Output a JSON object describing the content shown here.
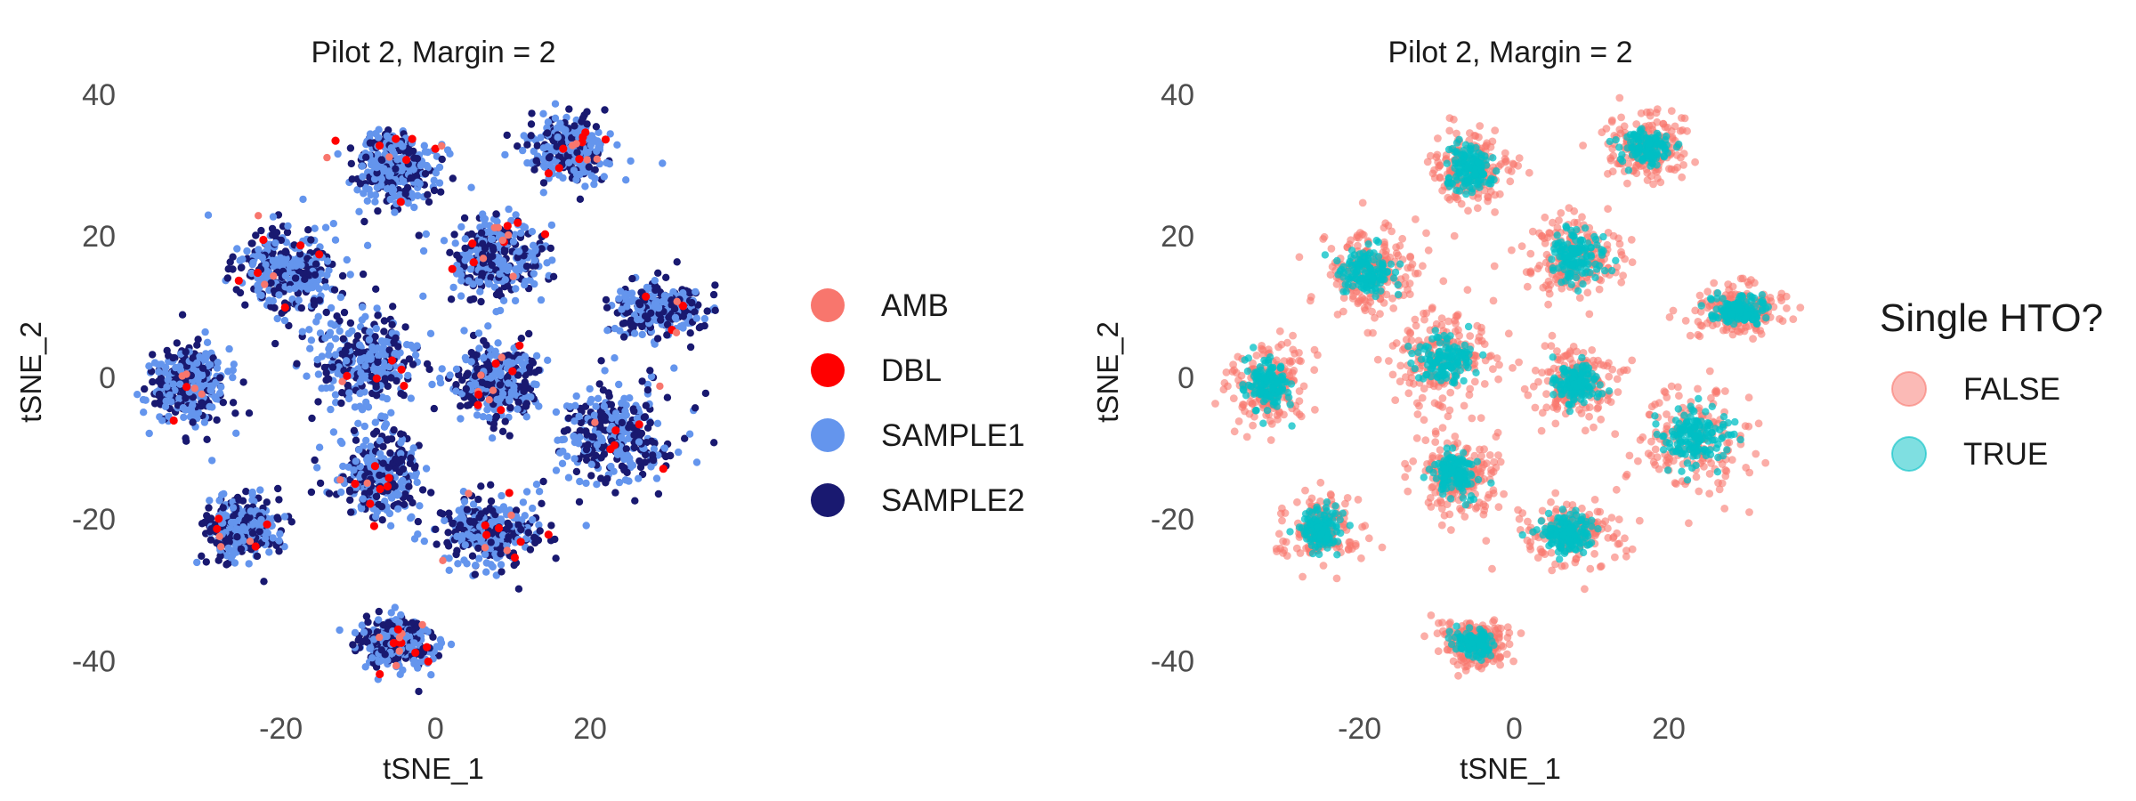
{
  "chart_data": [
    {
      "type": "scatter",
      "title": "Pilot 2, Margin = 2",
      "xlabel": "tSNE_1",
      "ylabel": "tSNE_2",
      "xticks": [
        -20,
        0,
        20
      ],
      "yticks": [
        -40,
        -20,
        0,
        20,
        40
      ],
      "xlim": [
        -37,
        36
      ],
      "ylim": [
        -46,
        42
      ],
      "grid": false,
      "legend_position": "right",
      "legend_title": "",
      "series": [
        {
          "name": "AMB",
          "color": "#F8766D"
        },
        {
          "name": "DBL",
          "color": "#FF0000"
        },
        {
          "name": "SAMPLE1",
          "color": "#6495ED"
        },
        {
          "name": "SAMPLE2",
          "color": "#191970"
        }
      ],
      "clusters": [
        {
          "x": -5.5,
          "y": 29.5,
          "sx": 2.6,
          "sy": 2.7
        },
        {
          "x": 17,
          "y": 32.5,
          "sx": 2.6,
          "sy": 2.2
        },
        {
          "x": -19,
          "y": 15,
          "sx": 3.3,
          "sy": 3.0
        },
        {
          "x": 8,
          "y": 17,
          "sx": 3.1,
          "sy": 3.0
        },
        {
          "x": 29,
          "y": 9.5,
          "sx": 2.9,
          "sy": 1.8
        },
        {
          "x": -32,
          "y": -1,
          "sx": 2.5,
          "sy": 3.0
        },
        {
          "x": -9,
          "y": 2.5,
          "sx": 3.4,
          "sy": 3.6
        },
        {
          "x": 8,
          "y": -1,
          "sx": 2.6,
          "sy": 2.6
        },
        {
          "x": 23.5,
          "y": -8.5,
          "sx": 3.8,
          "sy": 3.8
        },
        {
          "x": -7.5,
          "y": -14,
          "sx": 2.6,
          "sy": 2.9
        },
        {
          "x": 7,
          "y": -22,
          "sx": 3.2,
          "sy": 2.4
        },
        {
          "x": -25,
          "y": -21.5,
          "sx": 2.3,
          "sy": 2.3
        },
        {
          "x": -5,
          "y": -37.5,
          "sx": 2.2,
          "sy": 1.7
        }
      ]
    },
    {
      "type": "scatter",
      "title": "Pilot 2, Margin = 2",
      "xlabel": "tSNE_1",
      "ylabel": "tSNE_2",
      "xticks": [
        -20,
        0,
        20
      ],
      "yticks": [
        -40,
        -20,
        0,
        20,
        40
      ],
      "xlim": [
        -37,
        36
      ],
      "ylim": [
        -46,
        42
      ],
      "grid": false,
      "legend_position": "right",
      "legend_title": "Single HTO?",
      "series": [
        {
          "name": "FALSE",
          "color": "#F8766D"
        },
        {
          "name": "TRUE",
          "color": "#00BFC4"
        }
      ],
      "clusters": [
        {
          "x": -5.5,
          "y": 29.5,
          "sx": 2.6,
          "sy": 2.7
        },
        {
          "x": 17,
          "y": 32.5,
          "sx": 2.6,
          "sy": 2.2
        },
        {
          "x": -19,
          "y": 15,
          "sx": 3.3,
          "sy": 3.0
        },
        {
          "x": 8,
          "y": 17,
          "sx": 3.1,
          "sy": 3.0
        },
        {
          "x": 29,
          "y": 9.5,
          "sx": 2.9,
          "sy": 1.8
        },
        {
          "x": -32,
          "y": -1,
          "sx": 2.5,
          "sy": 3.0
        },
        {
          "x": -9,
          "y": 2.5,
          "sx": 3.4,
          "sy": 3.6
        },
        {
          "x": 8,
          "y": -1,
          "sx": 2.6,
          "sy": 2.6
        },
        {
          "x": 23.5,
          "y": -8.5,
          "sx": 3.8,
          "sy": 3.8
        },
        {
          "x": -7.5,
          "y": -14,
          "sx": 2.6,
          "sy": 2.9
        },
        {
          "x": 7,
          "y": -22,
          "sx": 3.2,
          "sy": 2.4
        },
        {
          "x": -25,
          "y": -21.5,
          "sx": 2.3,
          "sy": 2.3
        },
        {
          "x": -5,
          "y": -37.5,
          "sx": 2.2,
          "sy": 1.7
        }
      ]
    }
  ]
}
